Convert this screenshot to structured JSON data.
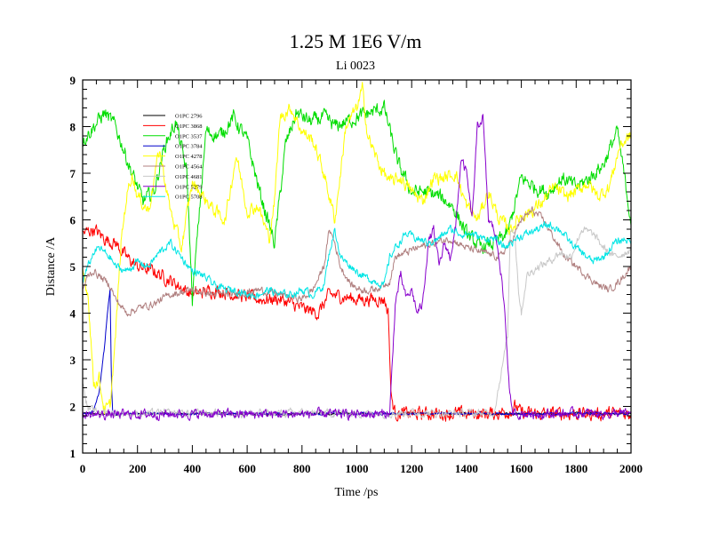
{
  "chart_data": {
    "type": "line",
    "title": "1.25 M 1E6 V/m",
    "subtitle": "Li 0023",
    "xlabel": "Time /ps",
    "ylabel": "Distance /A",
    "xlim": [
      0,
      2000
    ],
    "ylim": [
      1,
      9
    ],
    "xticks": [
      0,
      200,
      400,
      600,
      800,
      1000,
      1200,
      1400,
      1600,
      1800,
      2000
    ],
    "xtick_labels": [
      "0",
      "200",
      "400",
      "600",
      "800",
      "1000",
      "1200",
      "1400",
      "1600",
      "1800",
      "2000"
    ],
    "yticks": [
      1,
      2,
      3,
      4,
      5,
      6,
      7,
      8,
      9
    ],
    "ytick_labels": [
      "1",
      "2",
      "3",
      "4",
      "5",
      "6",
      "7",
      "8",
      "9"
    ],
    "x_minor_step": 50,
    "y_minor_step": 0.2,
    "legend_position": "top-left",
    "series": [
      {
        "name": "O1PC 2796",
        "color": "#000000",
        "x": [
          0,
          100,
          200,
          300,
          400,
          500,
          600,
          700,
          800,
          900,
          1000,
          1100,
          1200,
          1300,
          1400,
          1500,
          1600,
          1700,
          1800,
          1900,
          2000
        ],
        "y": [
          1.85,
          1.83,
          1.84,
          1.85,
          1.84,
          1.85,
          1.84,
          1.83,
          1.85,
          1.84,
          1.85,
          1.84,
          1.85,
          1.84,
          1.85,
          1.84,
          1.85,
          1.84,
          1.85,
          1.84,
          1.85
        ],
        "noise": 0.04
      },
      {
        "name": "O1PC 3868",
        "color": "#ff0000",
        "x": [
          0,
          40,
          80,
          120,
          160,
          200,
          260,
          320,
          400,
          480,
          560,
          640,
          720,
          800,
          860,
          900,
          1000,
          1100,
          1115,
          1125,
          1140,
          1200,
          1300,
          1400,
          1500,
          1560,
          1580,
          1600,
          1700,
          1800,
          1900,
          2000
        ],
        "y": [
          5.7,
          5.8,
          5.6,
          5.5,
          5.2,
          5.0,
          4.9,
          4.7,
          4.4,
          4.5,
          4.4,
          4.3,
          4.3,
          4.1,
          4.0,
          4.4,
          4.3,
          4.3,
          4.0,
          2.2,
          1.85,
          1.84,
          1.85,
          1.84,
          1.85,
          1.9,
          2.0,
          1.85,
          1.84,
          1.85,
          1.84,
          1.85
        ],
        "noise": 0.25
      },
      {
        "name": "O1PC 3537",
        "color": "#00dd00",
        "x": [
          0,
          40,
          80,
          120,
          150,
          180,
          220,
          260,
          300,
          340,
          380,
          400,
          450,
          500,
          550,
          600,
          650,
          700,
          740,
          780,
          830,
          880,
          920,
          960,
          1000,
          1050,
          1100,
          1150,
          1200,
          1250,
          1300,
          1350,
          1400,
          1450,
          1500,
          1550,
          1600,
          1650,
          1700,
          1750,
          1800,
          1850,
          1900,
          1950,
          2000
        ],
        "y": [
          7.7,
          8.0,
          8.3,
          8.0,
          7.5,
          7.0,
          6.4,
          6.6,
          7.6,
          8.1,
          7.0,
          4.3,
          7.9,
          7.8,
          8.2,
          7.7,
          6.5,
          5.5,
          7.6,
          8.3,
          8.1,
          8.2,
          8.0,
          8.1,
          8.2,
          8.3,
          8.4,
          7.2,
          6.6,
          6.6,
          6.5,
          6.3,
          5.7,
          5.4,
          5.5,
          5.7,
          6.9,
          6.7,
          6.6,
          6.9,
          6.7,
          6.9,
          7.2,
          7.9,
          6.0
        ],
        "noise": 0.28
      },
      {
        "name": "O1PC 3784",
        "color": "#0000cc",
        "x": [
          0,
          20,
          40,
          60,
          70,
          80,
          90,
          100,
          105,
          110,
          200,
          400,
          600,
          800,
          1000,
          1200,
          1400,
          1600,
          1800,
          2000
        ],
        "y": [
          1.82,
          1.85,
          1.9,
          2.3,
          2.8,
          3.3,
          4.0,
          4.5,
          2.5,
          1.84,
          1.85,
          1.84,
          1.85,
          1.84,
          1.85,
          1.84,
          1.85,
          1.84,
          1.85,
          1.84
        ],
        "noise": 0.05
      },
      {
        "name": "O1PC 4278",
        "color": "#ffff00",
        "x": [
          0,
          20,
          40,
          60,
          80,
          100,
          120,
          140,
          160,
          180,
          200,
          240,
          280,
          320,
          360,
          400,
          440,
          480,
          520,
          560,
          600,
          640,
          680,
          700,
          720,
          760,
          800,
          840,
          880,
          920,
          960,
          1000,
          1020,
          1040,
          1080,
          1120,
          1160,
          1200,
          1240,
          1280,
          1320,
          1360,
          1400,
          1440,
          1480,
          1520,
          1560,
          1600,
          1640,
          1680,
          1720,
          1760,
          1800,
          1840,
          1880,
          1920,
          1960,
          2000
        ],
        "y": [
          4.9,
          4.4,
          2.5,
          2.6,
          1.9,
          2.0,
          3.5,
          5.5,
          6.5,
          7.0,
          6.5,
          6.2,
          7.5,
          6.2,
          5.4,
          6.8,
          6.5,
          6.2,
          6.0,
          7.4,
          6.2,
          6.3,
          5.6,
          6.4,
          8.2,
          8.4,
          7.9,
          7.7,
          7.0,
          6.0,
          8.0,
          8.4,
          8.8,
          7.8,
          7.2,
          6.8,
          6.9,
          6.6,
          6.4,
          6.9,
          6.9,
          7.0,
          6.3,
          6.0,
          6.6,
          6.0,
          5.8,
          6.1,
          6.2,
          6.4,
          6.7,
          6.5,
          6.6,
          6.8,
          6.5,
          6.7,
          7.6,
          7.8
        ],
        "noise": 0.25
      },
      {
        "name": "O1PC 4564",
        "color": "#b08080",
        "x": [
          0,
          20,
          40,
          60,
          80,
          100,
          120,
          160,
          200,
          260,
          320,
          400,
          480,
          560,
          640,
          720,
          800,
          840,
          880,
          900,
          920,
          940,
          980,
          1020,
          1060,
          1100,
          1120,
          1140,
          1180,
          1220,
          1280,
          1340,
          1400,
          1460,
          1520,
          1560,
          1600,
          1640,
          1680,
          1720,
          1760,
          1800,
          1840,
          1880,
          1920,
          1960,
          2000
        ],
        "y": [
          4.5,
          4.8,
          4.9,
          4.8,
          4.7,
          4.6,
          4.3,
          4.0,
          4.1,
          4.2,
          4.4,
          4.5,
          4.4,
          4.4,
          4.5,
          4.4,
          4.3,
          4.5,
          5.0,
          5.8,
          5.5,
          5.0,
          4.6,
          4.5,
          4.5,
          4.6,
          4.7,
          5.2,
          5.3,
          5.4,
          5.5,
          5.6,
          5.4,
          5.3,
          5.2,
          5.5,
          6.0,
          6.2,
          6.0,
          5.6,
          5.2,
          5.0,
          4.8,
          4.6,
          4.5,
          4.7,
          5.0
        ],
        "noise": 0.14
      },
      {
        "name": "O1PC 4681",
        "color": "#c8c8c8",
        "x": [
          0,
          20,
          40,
          100,
          200,
          400,
          600,
          800,
          1000,
          1200,
          1400,
          1500,
          1550,
          1560,
          1575,
          1590,
          1600,
          1620,
          1660,
          1700,
          1740,
          1780,
          1820,
          1860,
          1900,
          1940,
          1980,
          2000
        ],
        "y": [
          2.5,
          1.95,
          1.9,
          1.86,
          1.85,
          1.86,
          1.85,
          1.86,
          1.85,
          1.86,
          1.85,
          1.86,
          3.5,
          5.8,
          5.8,
          4.5,
          4.0,
          4.8,
          5.0,
          5.1,
          5.3,
          5.2,
          5.8,
          5.7,
          5.4,
          5.2,
          5.3,
          5.4
        ],
        "noise": 0.15
      },
      {
        "name": "O1PC 5279",
        "color": "#8800cc",
        "x": [
          0,
          200,
          400,
          600,
          800,
          1000,
          1100,
          1110,
          1120,
          1130,
          1140,
          1160,
          1180,
          1200,
          1220,
          1240,
          1260,
          1280,
          1300,
          1320,
          1340,
          1360,
          1380,
          1400,
          1420,
          1440,
          1460,
          1480,
          1500,
          1520,
          1540,
          1555,
          1565,
          1600,
          1800,
          2000
        ],
        "y": [
          1.82,
          1.83,
          1.84,
          1.83,
          1.84,
          1.83,
          1.84,
          1.84,
          1.85,
          3.0,
          4.2,
          4.8,
          4.3,
          4.5,
          4.0,
          4.2,
          5.5,
          5.8,
          5.0,
          5.5,
          5.2,
          5.8,
          7.3,
          7.0,
          6.0,
          8.0,
          8.2,
          6.0,
          5.8,
          5.2,
          4.0,
          2.5,
          1.85,
          1.84,
          1.85,
          1.84
        ],
        "noise": 0.18
      },
      {
        "name": "O1PC 5708",
        "color": "#00e5e5",
        "x": [
          0,
          20,
          40,
          60,
          80,
          100,
          120,
          160,
          200,
          240,
          280,
          320,
          360,
          400,
          440,
          480,
          520,
          560,
          600,
          640,
          680,
          720,
          760,
          800,
          840,
          880,
          900,
          920,
          940,
          980,
          1020,
          1060,
          1100,
          1120,
          1140,
          1180,
          1220,
          1260,
          1300,
          1340,
          1380,
          1420,
          1460,
          1500,
          1540,
          1580,
          1620,
          1660,
          1700,
          1740,
          1780,
          1820,
          1860,
          1900,
          1940,
          1980,
          2000
        ],
        "y": [
          4.7,
          5.0,
          5.3,
          5.4,
          5.3,
          5.2,
          5.0,
          4.9,
          5.1,
          5.0,
          5.3,
          5.5,
          5.2,
          4.9,
          4.8,
          4.6,
          4.5,
          4.5,
          4.4,
          4.4,
          4.5,
          4.4,
          4.4,
          4.5,
          4.4,
          4.6,
          5.3,
          5.8,
          5.2,
          5.0,
          4.8,
          4.7,
          4.6,
          5.2,
          5.4,
          5.7,
          5.6,
          5.5,
          5.6,
          5.8,
          5.7,
          5.7,
          5.6,
          5.6,
          5.4,
          5.6,
          5.7,
          5.8,
          5.9,
          5.8,
          5.5,
          5.3,
          5.1,
          5.2,
          5.5,
          5.6,
          5.5
        ],
        "noise": 0.15
      }
    ]
  }
}
